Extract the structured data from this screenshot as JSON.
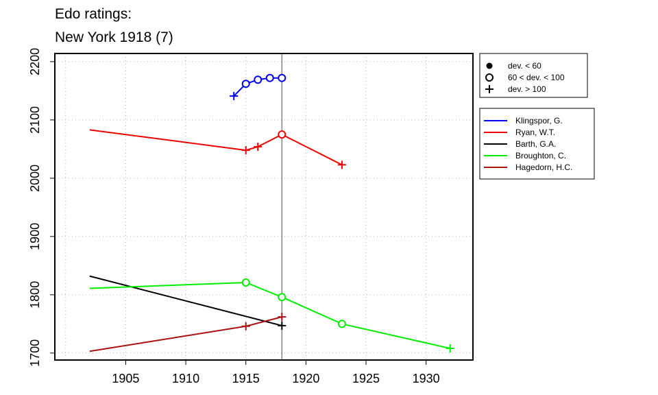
{
  "title_lines": [
    "Edo ratings:",
    "New York 1918 (7)"
  ],
  "chart_data": {
    "type": "line",
    "title": "Edo ratings: New York 1918 (7)",
    "xlim": [
      1899.1,
      1933.9
    ],
    "ylim": [
      1688,
      2214
    ],
    "x_ticks": [
      1905,
      1910,
      1915,
      1920,
      1925,
      1930
    ],
    "y_ticks": [
      1700,
      1800,
      1900,
      2000,
      2100,
      2200
    ],
    "x_grid": [
      1900,
      1905,
      1910,
      1915,
      1920,
      1925,
      1930
    ],
    "y_grid": [
      1700,
      1800,
      1900,
      2000,
      2100,
      2200
    ],
    "grid": true,
    "reference_line_x": 1918,
    "marker_legend": [
      {
        "marker": "dot",
        "label": "dev. < 60"
      },
      {
        "marker": "circle",
        "label": "60 < dev. < 100"
      },
      {
        "marker": "plus",
        "label": "dev. > 100"
      }
    ],
    "series": [
      {
        "name": "Klingspor, G.",
        "color": "#0000ee",
        "points": [
          {
            "x": 1914,
            "y": 2141,
            "marker": "plus"
          },
          {
            "x": 1915,
            "y": 2162,
            "marker": "circle"
          },
          {
            "x": 1916,
            "y": 2169,
            "marker": "circle"
          },
          {
            "x": 1917,
            "y": 2172,
            "marker": "circle"
          },
          {
            "x": 1918,
            "y": 2172,
            "marker": "circle"
          }
        ]
      },
      {
        "name": "Ryan, W.T.",
        "color": "#ee0000",
        "points": [
          {
            "x": 1902,
            "y": 2083,
            "marker": "none"
          },
          {
            "x": 1915,
            "y": 2048,
            "marker": "plus"
          },
          {
            "x": 1916,
            "y": 2054,
            "marker": "plus"
          },
          {
            "x": 1918,
            "y": 2075,
            "marker": "circle"
          },
          {
            "x": 1923,
            "y": 2023,
            "marker": "plus"
          }
        ]
      },
      {
        "name": "Barth, G.A.",
        "color": "#000000",
        "points": [
          {
            "x": 1902,
            "y": 1832,
            "marker": "none"
          },
          {
            "x": 1918,
            "y": 1747,
            "marker": "plus"
          }
        ]
      },
      {
        "name": "Broughton, C.",
        "color": "#00ee00",
        "points": [
          {
            "x": 1902,
            "y": 1811,
            "marker": "none"
          },
          {
            "x": 1915,
            "y": 1821,
            "marker": "circle"
          },
          {
            "x": 1918,
            "y": 1796,
            "marker": "circle"
          },
          {
            "x": 1923,
            "y": 1750,
            "marker": "circle"
          },
          {
            "x": 1932,
            "y": 1708,
            "marker": "plus"
          }
        ]
      },
      {
        "name": "Hagedorn, H.C.",
        "color": "#aa1111",
        "points": [
          {
            "x": 1902,
            "y": 1703,
            "marker": "none"
          },
          {
            "x": 1915,
            "y": 1746,
            "marker": "plus"
          },
          {
            "x": 1918,
            "y": 1762,
            "marker": "plus"
          }
        ]
      }
    ]
  }
}
